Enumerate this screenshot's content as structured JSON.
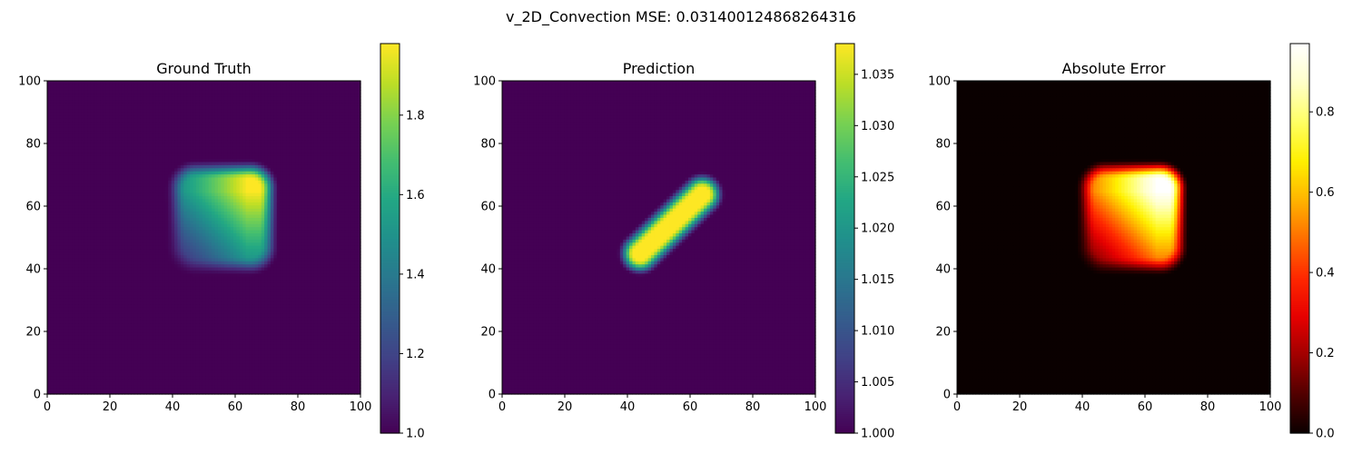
{
  "suptitle": "v_2D_Convection MSE: 0.031400124868264316",
  "chart_data": [
    {
      "type": "heatmap",
      "title": "Ground Truth",
      "colormap": "viridis",
      "xlim": [
        0,
        100
      ],
      "ylim": [
        0,
        100
      ],
      "xticks": [
        0,
        20,
        40,
        60,
        80,
        100
      ],
      "yticks": [
        0,
        20,
        40,
        60,
        80,
        100
      ],
      "colorbar": {
        "min": 1.0,
        "max": 1.98,
        "ticks": [
          "1.0",
          "1.2",
          "1.4",
          "1.6",
          "1.8"
        ],
        "tick_values": [
          1.0,
          1.2,
          1.4,
          1.6,
          1.8
        ]
      },
      "field": {
        "shape": "rounded-square",
        "background": 1.0,
        "x_range": [
          40,
          72
        ],
        "y_range": [
          40,
          73
        ],
        "corner_radius": 7,
        "edge_width": 4,
        "min_in_region": 1.1,
        "peak": 1.98,
        "peak_at": [
          64,
          65
        ]
      }
    },
    {
      "type": "heatmap",
      "title": "Prediction",
      "colormap": "viridis",
      "xlim": [
        0,
        100
      ],
      "ylim": [
        0,
        100
      ],
      "xticks": [
        0,
        20,
        40,
        60,
        80,
        100
      ],
      "yticks": [
        0,
        20,
        40,
        60,
        80,
        100
      ],
      "colorbar": {
        "min": 1.0,
        "max": 1.038,
        "ticks": [
          "1.000",
          "1.005",
          "1.010",
          "1.015",
          "1.020",
          "1.025",
          "1.030",
          "1.035"
        ],
        "tick_values": [
          1.0,
          1.005,
          1.01,
          1.015,
          1.02,
          1.025,
          1.03,
          1.035
        ]
      },
      "field": {
        "shape": "diagonal-capsule",
        "background": 1.0,
        "from": [
          44,
          45
        ],
        "to": [
          64,
          64
        ],
        "half_width": 4.8,
        "peak": 1.038
      }
    },
    {
      "type": "heatmap",
      "title": "Absolute Error",
      "colormap": "hot",
      "xlim": [
        0,
        100
      ],
      "ylim": [
        0,
        100
      ],
      "xticks": [
        0,
        20,
        40,
        60,
        80,
        100
      ],
      "yticks": [
        0,
        20,
        40,
        60,
        80,
        100
      ],
      "colorbar": {
        "min": 0.0,
        "max": 0.97,
        "ticks": [
          "0.0",
          "0.2",
          "0.4",
          "0.6",
          "0.8"
        ],
        "tick_values": [
          0.0,
          0.2,
          0.4,
          0.6,
          0.8
        ]
      },
      "field": {
        "shape": "rounded-square",
        "background": 0.0,
        "x_range": [
          40,
          72
        ],
        "y_range": [
          40,
          73
        ],
        "corner_radius": 7,
        "edge_width": 4,
        "min_in_region": 0.1,
        "peak": 0.97,
        "peak_at": [
          64,
          65
        ]
      }
    }
  ]
}
